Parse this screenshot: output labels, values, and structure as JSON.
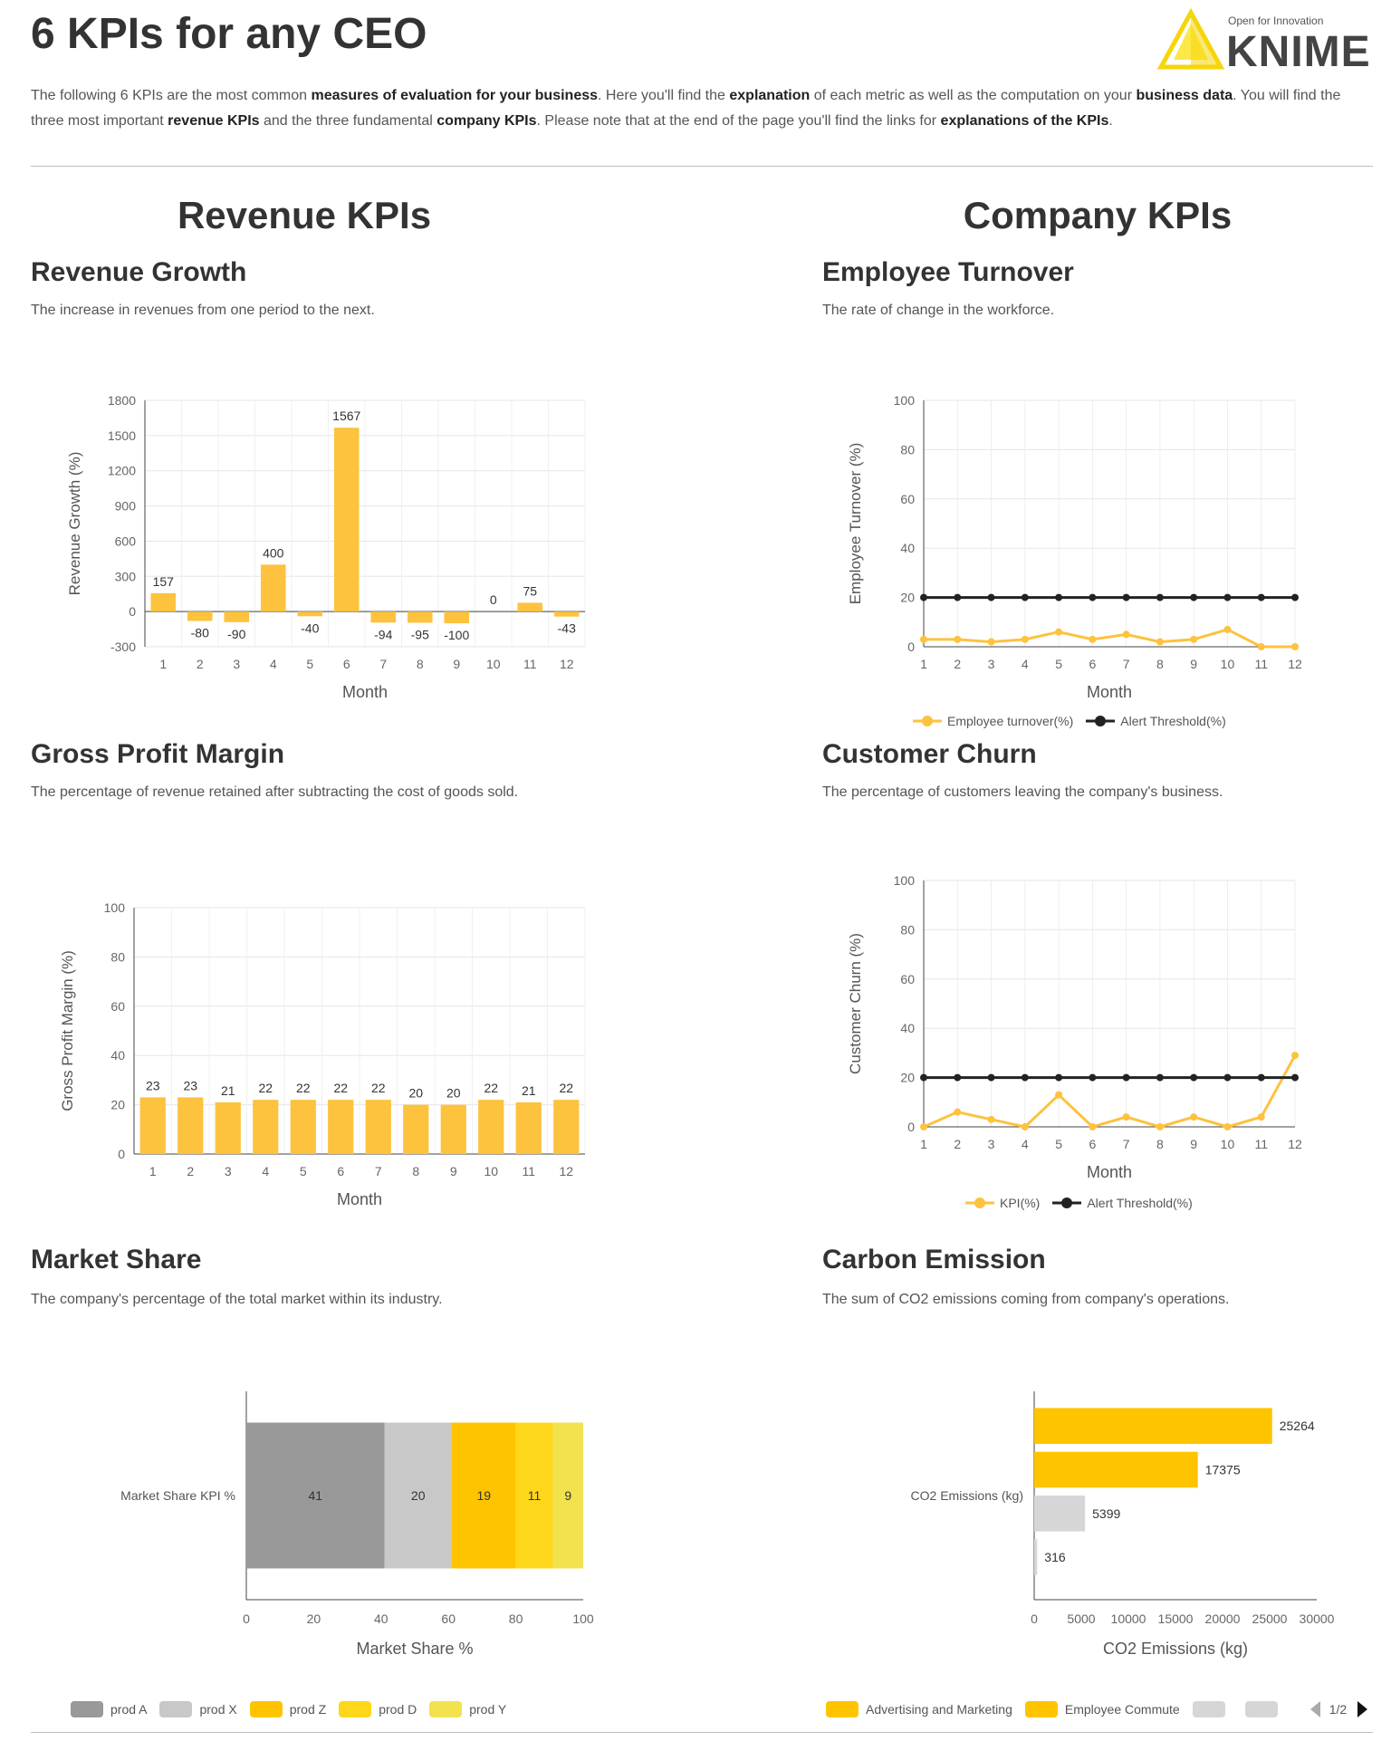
{
  "header": {
    "title": "6 KPIs for any CEO",
    "logo_tagline": "Open for Innovation",
    "logo_word": "KNIME",
    "intro": [
      {
        "t": "The following 6 KPIs are the most common ",
        "b": false
      },
      {
        "t": "measures of evaluation for your business",
        "b": true
      },
      {
        "t": ". Here you'll find the ",
        "b": false
      },
      {
        "t": "explanation",
        "b": true
      },
      {
        "t": " of each metric as well as the computation on your ",
        "b": false
      },
      {
        "t": "business data",
        "b": true
      },
      {
        "t": ". You will find the three most important ",
        "b": false
      },
      {
        "t": "revenue KPIs",
        "b": true
      },
      {
        "t": " and the three fundamental ",
        "b": false
      },
      {
        "t": "company KPIs",
        "b": true
      },
      {
        "t": ". Please note that at the end of the page you'll find the links for ",
        "b": false
      },
      {
        "t": "explanations of the KPIs",
        "b": true
      },
      {
        "t": ".",
        "b": false
      }
    ]
  },
  "columns": {
    "left_title": "Revenue KPIs",
    "right_title": "Company KPIs"
  },
  "colors": {
    "accent": "#fdc23e",
    "dark": "#222222",
    "grey": "#999999",
    "light_grey": "#c8c8c8"
  },
  "kpis": {
    "revenue_growth": {
      "title": "Revenue Growth",
      "desc": "The increase in revenues from one period to the next."
    },
    "employee_turnover": {
      "title": "Employee Turnover",
      "desc": "The rate of change in the workforce."
    },
    "gross_profit": {
      "title": "Gross Profit Margin",
      "desc": "The percentage of revenue retained after subtracting the cost of goods sold."
    },
    "customer_churn": {
      "title": "Customer Churn",
      "desc": "The percentage of customers leaving the company's business."
    },
    "market_share": {
      "title": "Market Share",
      "desc": "The company's percentage of the total market within its industry."
    },
    "carbon": {
      "title": "Carbon Emission",
      "desc": "The sum of CO2 emissions coming from company's operations."
    }
  },
  "chart_data": [
    {
      "id": "revenue_growth",
      "type": "bar",
      "categories": [
        "1",
        "2",
        "3",
        "4",
        "5",
        "6",
        "7",
        "8",
        "9",
        "10",
        "11",
        "12"
      ],
      "values": [
        157,
        -80,
        -90,
        400,
        -40,
        1567,
        -94,
        -95,
        -100,
        0,
        75,
        -43
      ],
      "data_labels": [
        "157",
        "-80",
        "-90",
        "400",
        "-40",
        "1567",
        "-94",
        "-95",
        "-100",
        "0",
        "75",
        "-43"
      ],
      "xlabel": "Month",
      "ylabel": "Revenue Growth (%)",
      "ylim": [
        -300,
        1800
      ],
      "yticks": [
        -300,
        0,
        300,
        600,
        900,
        1200,
        1500,
        1800
      ],
      "grid": true
    },
    {
      "id": "employee_turnover",
      "type": "line",
      "x": [
        "1",
        "2",
        "3",
        "4",
        "5",
        "6",
        "7",
        "8",
        "9",
        "10",
        "11",
        "12"
      ],
      "series": [
        {
          "name": "Employee turnover(%)",
          "values": [
            3,
            3,
            2,
            3,
            6,
            3,
            5,
            2,
            3,
            7,
            0,
            0
          ],
          "color": "#fdc23e"
        },
        {
          "name": "Alert Threshold(%)",
          "values": [
            20,
            20,
            20,
            20,
            20,
            20,
            20,
            20,
            20,
            20,
            20,
            20
          ],
          "color": "#222222"
        }
      ],
      "xlabel": "Month",
      "ylabel": "Employee Turnover (%)",
      "ylim": [
        0,
        100
      ],
      "yticks": [
        0,
        20,
        40,
        60,
        80,
        100
      ],
      "grid": true,
      "legend": "bottom"
    },
    {
      "id": "gross_profit",
      "type": "bar",
      "categories": [
        "1",
        "2",
        "3",
        "4",
        "5",
        "6",
        "7",
        "8",
        "9",
        "10",
        "11",
        "12"
      ],
      "values": [
        23,
        23,
        21,
        22,
        22,
        22,
        22,
        20,
        20,
        22,
        21,
        22
      ],
      "data_labels": [
        "23",
        "23",
        "21",
        "22",
        "22",
        "22",
        "22",
        "20",
        "20",
        "22",
        "21",
        "22"
      ],
      "xlabel": "Month",
      "ylabel": "Gross Profit Margin (%)",
      "ylim": [
        0,
        100
      ],
      "yticks": [
        0,
        20,
        40,
        60,
        80,
        100
      ],
      "grid": true
    },
    {
      "id": "customer_churn",
      "type": "line",
      "x": [
        "1",
        "2",
        "3",
        "4",
        "5",
        "6",
        "7",
        "8",
        "9",
        "10",
        "11",
        "12"
      ],
      "series": [
        {
          "name": "KPI(%)",
          "values": [
            0,
            6,
            3,
            0,
            13,
            0,
            4,
            0,
            4,
            0,
            4,
            29
          ],
          "color": "#fdc23e"
        },
        {
          "name": "Alert Threshold(%)",
          "values": [
            20,
            20,
            20,
            20,
            20,
            20,
            20,
            20,
            20,
            20,
            20,
            20
          ],
          "color": "#222222"
        }
      ],
      "xlabel": "Month",
      "ylabel": "Customer Churn (%)",
      "ylim": [
        0,
        100
      ],
      "yticks": [
        0,
        20,
        40,
        60,
        80,
        100
      ],
      "grid": true,
      "legend": "bottom"
    },
    {
      "id": "market_share",
      "type": "bar",
      "orientation": "horizontal",
      "stacked": true,
      "categories": [
        "Market Share KPI %"
      ],
      "series": [
        {
          "name": "prod A",
          "values": [
            41
          ],
          "color": "#999999"
        },
        {
          "name": "prod X",
          "values": [
            20
          ],
          "color": "#c8c8c8"
        },
        {
          "name": "prod Z",
          "values": [
            19
          ],
          "color": "#ffc400"
        },
        {
          "name": "prod D",
          "values": [
            11
          ],
          "color": "#ffd71a"
        },
        {
          "name": "prod Y",
          "values": [
            9
          ],
          "color": "#f2e24d"
        }
      ],
      "xlabel": "Market Share %",
      "xlim": [
        0,
        100
      ],
      "xticks": [
        0,
        20,
        40,
        60,
        80,
        100
      ],
      "legend": "bottom"
    },
    {
      "id": "carbon",
      "type": "bar",
      "orientation": "horizontal",
      "categories": [
        "CO2 Emissions (kg)"
      ],
      "series": [
        {
          "name": "Advertising and Marketing",
          "values": [
            25264
          ],
          "color": "#ffc400"
        },
        {
          "name": "Employee Commute",
          "values": [
            17375
          ],
          "color": "#ffc400"
        },
        {
          "name": "",
          "values": [
            5399
          ],
          "color": "#d6d6d6"
        },
        {
          "name": "",
          "values": [
            316
          ],
          "color": "#d6d6d6"
        }
      ],
      "xlabel": "CO2 Emissions (kg)",
      "xlim": [
        0,
        30000
      ],
      "xticks": [
        0,
        5000,
        10000,
        15000,
        20000,
        25000,
        30000
      ],
      "legend": "bottom",
      "legend_page": "1/2"
    }
  ]
}
